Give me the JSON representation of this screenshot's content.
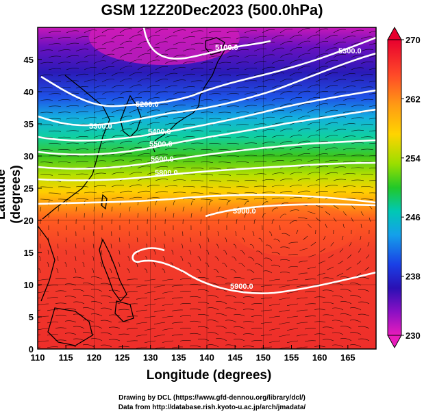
{
  "title": "GSM 12Z20Dec2023 (500.0hPa)",
  "xlabel": "Longitude (degrees)",
  "ylabel": "Latitude  (degrees)",
  "credits": [
    "Drawing by DCL (https://www.gfd-dennou.org/library/dcl/)",
    "Data from http://database.rish.kyoto-u.ac.jp/arch/jmadata/"
  ],
  "map": {
    "lon_range": [
      110,
      170
    ],
    "lat_range": [
      0,
      50
    ],
    "lon_ticks": [
      "110",
      "115",
      "120",
      "125",
      "130",
      "135",
      "140",
      "145",
      "150",
      "155",
      "160",
      "165"
    ],
    "lat_ticks": [
      "0",
      "5",
      "10",
      "15",
      "20",
      "25",
      "30",
      "35",
      "40",
      "45"
    ],
    "grid": "10 degree",
    "field": "temperature (K), shaded",
    "vectors": "wind streamlines (black)",
    "coastline_color": "#000000",
    "contour_color": "#ffffff"
  },
  "contour_labels": [
    "5100.0",
    "5200.0",
    "5300.0",
    "5300.0",
    "5400.0",
    "5500.0",
    "5600.0",
    "5800.0",
    "5900.0",
    "5900.0"
  ],
  "colorbar": {
    "labels": [
      "270",
      "262",
      "254",
      "246",
      "238",
      "230"
    ],
    "min": 230,
    "max": 270,
    "colors": [
      "#e8002e",
      "#ff3a2a",
      "#ff7a1e",
      "#ffc200",
      "#b8e000",
      "#30c81e",
      "#00c8aa",
      "#12a8e8",
      "#1a44e6",
      "#2010b4",
      "#7a10c8",
      "#e01ab8"
    ]
  }
}
